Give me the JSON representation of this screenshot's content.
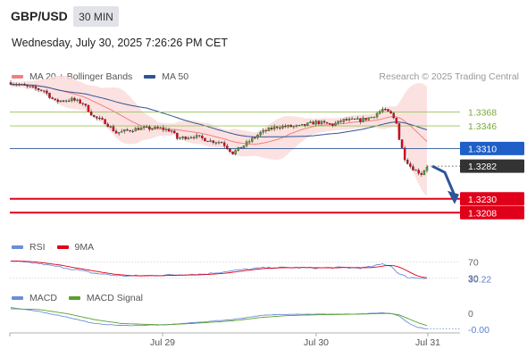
{
  "header": {
    "symbol": "GBP/USD",
    "interval": "30 MIN",
    "datetime": "Wednesday, July 30, 2025 7:26:26 PM CET"
  },
  "legend": {
    "price": [
      {
        "label": "MA 20 + Bollinger Bands",
        "color": "#f08080"
      },
      {
        "label": "MA 50",
        "color": "#2f5496"
      }
    ],
    "rsi": [
      {
        "label": "RSI",
        "color": "#6b8ed6"
      },
      {
        "label": "9MA",
        "color": "#e0001a"
      }
    ],
    "macd": [
      {
        "label": "MACD",
        "color": "#6b8ed6"
      },
      {
        "label": "MACD Signal",
        "color": "#5aa02c"
      }
    ]
  },
  "credit": "Research © 2025 Trading Central",
  "colors": {
    "up": "#5aa02c",
    "down": "#e0001a",
    "resistance": "#9bc35a",
    "support": "#e0001a",
    "pivot": "#2f5496",
    "current": "#333333",
    "band_fill": "#fcdcdc",
    "arrow": "#2f5496"
  },
  "chart_data": {
    "type": "candlestick",
    "symbol": "GBP/USD",
    "interval": "30 MIN",
    "x_ticks": [
      "Jul 29",
      "Jul 30",
      "Jul 31"
    ],
    "price_ylim": [
      1.318,
      1.341
    ],
    "levels": [
      {
        "label": "1.3368",
        "value": 1.3368,
        "kind": "resistance"
      },
      {
        "label": "1.3346",
        "value": 1.3346,
        "kind": "resistance"
      },
      {
        "label": "1.3310",
        "value": 1.331,
        "kind": "pivot"
      },
      {
        "label": "1.3282",
        "value": 1.3282,
        "kind": "current"
      },
      {
        "label": "1.3230",
        "value": 1.323,
        "kind": "support"
      },
      {
        "label": "1.3208",
        "value": 1.3208,
        "kind": "support"
      }
    ],
    "close_anchors": [
      [
        0,
        1.3415
      ],
      [
        6,
        1.3408
      ],
      [
        12,
        1.3402
      ],
      [
        16,
        1.3385
      ],
      [
        22,
        1.3388
      ],
      [
        26,
        1.3382
      ],
      [
        30,
        1.336
      ],
      [
        34,
        1.3352
      ],
      [
        38,
        1.3335
      ],
      [
        46,
        1.3342
      ],
      [
        54,
        1.3342
      ],
      [
        58,
        1.3338
      ],
      [
        60,
        1.3326
      ],
      [
        66,
        1.333
      ],
      [
        72,
        1.3322
      ],
      [
        76,
        1.332
      ],
      [
        80,
        1.3303
      ],
      [
        84,
        1.3315
      ],
      [
        90,
        1.3335
      ],
      [
        96,
        1.3345
      ],
      [
        104,
        1.3345
      ],
      [
        110,
        1.3352
      ],
      [
        116,
        1.3348
      ],
      [
        120,
        1.3355
      ],
      [
        126,
        1.3355
      ],
      [
        130,
        1.336
      ],
      [
        134,
        1.3372
      ],
      [
        137,
        1.3365
      ],
      [
        139,
        1.3352
      ],
      [
        140,
        1.3325
      ],
      [
        142,
        1.3295
      ],
      [
        144,
        1.3282
      ],
      [
        146,
        1.3275
      ],
      [
        148,
        1.327
      ],
      [
        150,
        1.3282
      ]
    ],
    "bar_count": 151,
    "forecast": {
      "from": 1.3282,
      "to": 1.323
    },
    "rsi": {
      "last_label": "30.22",
      "levels": [
        {
          "label": "70",
          "value": 70
        },
        {
          "label": "30",
          "value": 30
        }
      ],
      "anchors": [
        [
          0,
          72
        ],
        [
          10,
          66
        ],
        [
          20,
          55
        ],
        [
          30,
          42
        ],
        [
          40,
          35
        ],
        [
          50,
          36
        ],
        [
          60,
          38
        ],
        [
          70,
          40
        ],
        [
          80,
          48
        ],
        [
          90,
          55
        ],
        [
          100,
          56
        ],
        [
          110,
          55
        ],
        [
          120,
          56
        ],
        [
          126,
          55
        ],
        [
          130,
          58
        ],
        [
          134,
          65
        ],
        [
          137,
          60
        ],
        [
          140,
          40
        ],
        [
          143,
          32
        ],
        [
          146,
          30
        ],
        [
          150,
          30.22
        ]
      ]
    },
    "macd": {
      "zero_label": "0",
      "last_label": "-0.00",
      "anchors": [
        [
          0,
          0.0014
        ],
        [
          10,
          0.0008
        ],
        [
          20,
          0.0
        ],
        [
          30,
          -0.001
        ],
        [
          40,
          -0.0013
        ],
        [
          55,
          -0.0012
        ],
        [
          65,
          -0.0009
        ],
        [
          80,
          -0.0004
        ],
        [
          90,
          0.0002
        ],
        [
          100,
          0.0004
        ],
        [
          110,
          0.0004
        ],
        [
          125,
          0.0004
        ],
        [
          134,
          0.0006
        ],
        [
          137,
          0.0005
        ],
        [
          140,
          0.0001
        ],
        [
          144,
          -0.0011
        ],
        [
          147,
          -0.0016
        ],
        [
          150,
          -0.0018
        ]
      ],
      "signal_anchors": [
        [
          0,
          0.0012
        ],
        [
          10,
          0.0011
        ],
        [
          20,
          0.0005
        ],
        [
          30,
          -0.0004
        ],
        [
          40,
          -0.001
        ],
        [
          55,
          -0.0012
        ],
        [
          65,
          -0.001
        ],
        [
          80,
          -0.0006
        ],
        [
          90,
          -0.0001
        ],
        [
          100,
          0.0002
        ],
        [
          110,
          0.0003
        ],
        [
          125,
          0.0004
        ],
        [
          134,
          0.0005
        ],
        [
          137,
          0.0005
        ],
        [
          140,
          0.0003
        ],
        [
          144,
          -0.0004
        ],
        [
          147,
          -0.0009
        ],
        [
          150,
          -0.0013
        ]
      ]
    }
  }
}
